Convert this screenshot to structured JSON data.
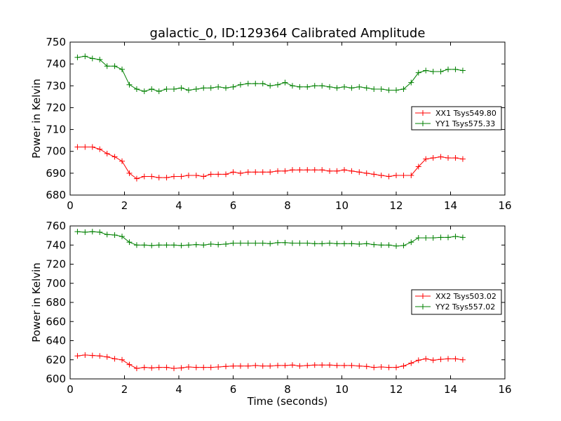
{
  "figure": {
    "title": "galactic_0, ID:129364 Calibrated Amplitude"
  },
  "chart_data": [
    {
      "type": "line",
      "title": "galactic_0, ID:129364 Calibrated Amplitude",
      "xlabel": "",
      "ylabel": "Power in Kelvin",
      "xlim": [
        0,
        16
      ],
      "ylim": [
        680,
        750
      ],
      "xticks": [
        0,
        2,
        4,
        6,
        8,
        10,
        12,
        14,
        16
      ],
      "yticks": [
        680,
        690,
        700,
        710,
        720,
        730,
        740,
        750
      ],
      "grid": false,
      "legend": "center-right",
      "series": [
        {
          "name": "XX1 Tsys549.80",
          "color": "#ff0000",
          "x": [
            0.27,
            0.55,
            0.82,
            1.09,
            1.36,
            1.64,
            1.91,
            2.18,
            2.45,
            2.73,
            3.0,
            3.27,
            3.55,
            3.82,
            4.09,
            4.36,
            4.64,
            4.91,
            5.18,
            5.45,
            5.73,
            6.0,
            6.27,
            6.55,
            6.82,
            7.09,
            7.36,
            7.64,
            7.91,
            8.18,
            8.45,
            8.73,
            9.0,
            9.27,
            9.55,
            9.82,
            10.09,
            10.36,
            10.64,
            10.91,
            11.18,
            11.45,
            11.73,
            12.0,
            12.27,
            12.55,
            12.82,
            13.09,
            13.36,
            13.64,
            13.91,
            14.18,
            14.45
          ],
          "y": [
            702,
            702,
            702,
            701,
            699,
            697.5,
            695.5,
            690,
            687.5,
            688.5,
            688.5,
            688,
            688,
            688.5,
            688.5,
            689,
            689,
            688.5,
            689.5,
            689.5,
            689.5,
            690.5,
            690,
            690.5,
            690.5,
            690.5,
            690.5,
            691,
            691,
            691.5,
            691.5,
            691.5,
            691.5,
            691.5,
            691,
            691,
            691.5,
            691,
            690.5,
            690,
            689.5,
            689,
            688.5,
            689,
            689,
            689,
            693,
            696.5,
            697,
            697.5,
            697,
            697,
            696.5
          ]
        },
        {
          "name": "YY1 Tsys575.33",
          "color": "#008000",
          "x": [
            0.27,
            0.55,
            0.82,
            1.09,
            1.36,
            1.64,
            1.91,
            2.18,
            2.45,
            2.73,
            3.0,
            3.27,
            3.55,
            3.82,
            4.09,
            4.36,
            4.64,
            4.91,
            5.18,
            5.45,
            5.73,
            6.0,
            6.27,
            6.55,
            6.82,
            7.09,
            7.36,
            7.64,
            7.91,
            8.18,
            8.45,
            8.73,
            9.0,
            9.27,
            9.55,
            9.82,
            10.09,
            10.36,
            10.64,
            10.91,
            11.18,
            11.45,
            11.73,
            12.0,
            12.27,
            12.55,
            12.82,
            13.09,
            13.36,
            13.64,
            13.91,
            14.18,
            14.45
          ],
          "y": [
            743,
            743.5,
            742.5,
            742,
            739,
            739,
            737.5,
            730.5,
            728.5,
            727.5,
            728.5,
            727.5,
            728.5,
            728.5,
            729,
            728,
            728.5,
            729,
            729,
            729.5,
            729,
            729.5,
            730.5,
            731,
            731,
            731,
            730,
            730.5,
            731.5,
            730,
            729.5,
            729.5,
            730,
            730,
            729.5,
            729,
            729.5,
            729,
            729.5,
            729,
            728.5,
            728.5,
            728,
            728,
            728.5,
            731.5,
            736,
            737,
            736.5,
            736.5,
            737.5,
            737.5,
            737
          ]
        }
      ]
    },
    {
      "type": "line",
      "title": "",
      "xlabel": "Time (seconds)",
      "ylabel": "Power in Kelvin",
      "xlim": [
        0,
        16
      ],
      "ylim": [
        600,
        760
      ],
      "xticks": [
        0,
        2,
        4,
        6,
        8,
        10,
        12,
        14,
        16
      ],
      "yticks": [
        600,
        620,
        640,
        660,
        680,
        700,
        720,
        740,
        760
      ],
      "grid": false,
      "legend": "center-right",
      "series": [
        {
          "name": "XX2 Tsys503.02",
          "color": "#ff0000",
          "x": [
            0.27,
            0.55,
            0.82,
            1.09,
            1.36,
            1.64,
            1.91,
            2.18,
            2.45,
            2.73,
            3.0,
            3.27,
            3.55,
            3.82,
            4.09,
            4.36,
            4.64,
            4.91,
            5.18,
            5.45,
            5.73,
            6.0,
            6.27,
            6.55,
            6.82,
            7.09,
            7.36,
            7.64,
            7.91,
            8.18,
            8.45,
            8.73,
            9.0,
            9.27,
            9.55,
            9.82,
            10.09,
            10.36,
            10.64,
            10.91,
            11.18,
            11.45,
            11.73,
            12.0,
            12.27,
            12.55,
            12.82,
            13.09,
            13.36,
            13.64,
            13.91,
            14.18,
            14.45
          ],
          "y": [
            624,
            625,
            624.5,
            624,
            623,
            621,
            620,
            615,
            611,
            612,
            611.5,
            612,
            612,
            611,
            611.5,
            612.5,
            612,
            612,
            612,
            612.5,
            613,
            613.5,
            613.5,
            613.5,
            614,
            613.5,
            613.5,
            614,
            614,
            614.5,
            613.5,
            614,
            614.5,
            614.5,
            614.5,
            614,
            614,
            614,
            613.5,
            613,
            612,
            612.5,
            612,
            612,
            613.5,
            616.5,
            619.5,
            621,
            619.5,
            620.5,
            621,
            621,
            620
          ]
        },
        {
          "name": "YY2 Tsys557.02",
          "color": "#008000",
          "x": [
            0.27,
            0.55,
            0.82,
            1.09,
            1.36,
            1.64,
            1.91,
            2.18,
            2.45,
            2.73,
            3.0,
            3.27,
            3.55,
            3.82,
            4.09,
            4.36,
            4.64,
            4.91,
            5.18,
            5.45,
            5.73,
            6.0,
            6.27,
            6.55,
            6.82,
            7.09,
            7.36,
            7.64,
            7.91,
            8.18,
            8.45,
            8.73,
            9.0,
            9.27,
            9.55,
            9.82,
            10.09,
            10.36,
            10.64,
            10.91,
            11.18,
            11.45,
            11.73,
            12.0,
            12.27,
            12.55,
            12.82,
            13.09,
            13.36,
            13.64,
            13.91,
            14.18,
            14.45
          ],
          "y": [
            754,
            753.5,
            754,
            753.5,
            751,
            750.5,
            749,
            743,
            740,
            740,
            739.5,
            740,
            740,
            740,
            739.5,
            740,
            740.5,
            740,
            741,
            740.5,
            741,
            742,
            742,
            742,
            742,
            742,
            741.5,
            742.5,
            742.5,
            742,
            742,
            742,
            741.5,
            741.5,
            742,
            741.5,
            741.5,
            741.5,
            741,
            741.5,
            740.5,
            740,
            740,
            739,
            739.5,
            743,
            747.5,
            747.5,
            747.5,
            748,
            748,
            749,
            748
          ]
        }
      ]
    }
  ]
}
